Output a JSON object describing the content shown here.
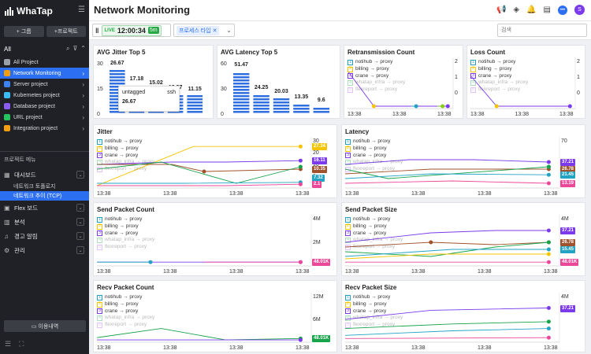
{
  "app": {
    "name": "WhaTap"
  },
  "sidebar": {
    "add_group": "+ 그룹",
    "add_project": "+프로젝트",
    "all_label": "All",
    "projects": [
      {
        "label": "All Project",
        "color": "#9aa0a8"
      },
      {
        "label": "Network Monitoring",
        "color": "#f59e0b"
      },
      {
        "label": "Server project",
        "color": "#3b82f6"
      },
      {
        "label": "Kubernetes project",
        "color": "#38bdf8"
      },
      {
        "label": "Database project",
        "color": "#8b5cf6"
      },
      {
        "label": "URL project",
        "color": "#22c55e"
      },
      {
        "label": "Integration project",
        "color": "#f59e0b"
      }
    ],
    "menu_title": "프로젝트 메뉴",
    "menu": {
      "dashboard": "대시보드",
      "sub1": "네트워크 토폴로지",
      "sub2": "네트워크 추이 (TCP)",
      "flex": "Flex 보드",
      "analysis": "분석",
      "alert": "경고 알림",
      "manage": "관리"
    },
    "usage": "이용내역"
  },
  "header": {
    "title": "Network Monitoring"
  },
  "toolbar": {
    "live": "LIVE",
    "time": "12:00:34",
    "duration": "5m",
    "process_type": "프로세스 타입",
    "search_placeholder": "검색"
  },
  "legend_items": [
    {
      "n": "1",
      "label": "notihub → proxy",
      "color": "#22a3c4"
    },
    {
      "n": "2",
      "label": "billing → proxy",
      "color": "#f5c400"
    },
    {
      "n": "3",
      "label": "crane → proxy",
      "color": "#7c3aed"
    },
    {
      "n": "4",
      "label": "whatap_infra → proxy",
      "color": "#16a34a"
    },
    {
      "n": "5",
      "label": "flexreport → proxy",
      "color": "#a855f7"
    }
  ],
  "time_label": "13:38",
  "widgets": {
    "jitter_top5": {
      "title": "AVG Jitter Top 5",
      "tooltip_label": "untagged",
      "tooltip_val": "26.67",
      "tooltip_name": "ssh"
    },
    "latency_top5": {
      "title": "AVG Latency Top 5"
    },
    "retrans": {
      "title": "Retransmission Count"
    },
    "loss": {
      "title": "Loss Count"
    },
    "jitter": {
      "title": "Jitter"
    },
    "latency": {
      "title": "Latency"
    },
    "send_count": {
      "title": "Send Packet Count"
    },
    "send_size": {
      "title": "Send Packet Size"
    },
    "recv_count": {
      "title": "Recv Packet Count"
    },
    "recv_size": {
      "title": "Recv Packet Size"
    }
  },
  "chart_data": [
    {
      "type": "bar",
      "title": "AVG Jitter Top 5",
      "values": [
        26.67,
        17.18,
        15.02,
        12.27,
        11.15
      ],
      "yticks": [
        "30",
        "15",
        "0"
      ],
      "ylim": [
        0,
        30
      ]
    },
    {
      "type": "bar",
      "title": "AVG Latency Top 5",
      "values": [
        51.47,
        24.25,
        20.03,
        13.35,
        9.6
      ],
      "yticks": [
        "60",
        "30",
        "0"
      ],
      "ylim": [
        0,
        60
      ]
    },
    {
      "type": "line",
      "title": "Retransmission Count",
      "yticks": [
        "2",
        "1",
        "0"
      ]
    },
    {
      "type": "line",
      "title": "Loss Count",
      "yticks": [
        "2",
        "1",
        "0"
      ]
    },
    {
      "type": "line",
      "title": "Jitter",
      "yticks": [
        "30",
        "20",
        "10",
        "0"
      ],
      "badges": [
        "27.34",
        "16.11",
        "10.35",
        "7.32",
        "2.1"
      ]
    },
    {
      "type": "line",
      "title": "Latency",
      "yticks": [
        "70"
      ],
      "badges": [
        "37.21",
        "26.78",
        "21.45",
        "13.19"
      ]
    },
    {
      "type": "line",
      "title": "Send Packet Count",
      "yticks": [
        "4M",
        "2M"
      ],
      "badges": [
        "48.01K"
      ]
    },
    {
      "type": "line",
      "title": "Send Packet Size",
      "yticks": [
        "4M"
      ],
      "badges": [
        "37.21",
        "26.78",
        "15.45",
        "48.01K"
      ]
    },
    {
      "type": "line",
      "title": "Recv Packet Count",
      "yticks": [
        "12M",
        "6M"
      ],
      "badges": [
        "48.01K"
      ]
    },
    {
      "type": "line",
      "title": "Recv Packet Size",
      "yticks": [
        "4M"
      ],
      "badges": [
        "37.21"
      ]
    }
  ]
}
